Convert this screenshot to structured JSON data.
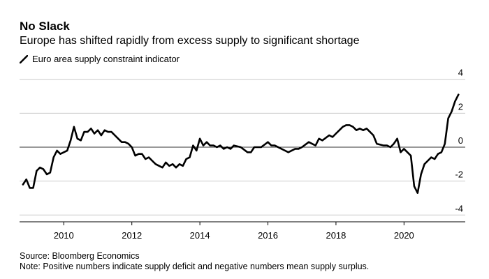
{
  "chart_data": {
    "type": "line",
    "title": "No Slack",
    "subtitle": "Europe has shifted rapidly from excess supply to significant shortage",
    "series": [
      {
        "name": "Euro area supply constraint indicator",
        "color": "#000000",
        "x": [
          2008.8,
          2008.9,
          2009.0,
          2009.1,
          2009.2,
          2009.3,
          2009.4,
          2009.5,
          2009.6,
          2009.7,
          2009.8,
          2009.9,
          2010.0,
          2010.1,
          2010.2,
          2010.3,
          2010.4,
          2010.5,
          2010.6,
          2010.7,
          2010.8,
          2010.9,
          2011.0,
          2011.1,
          2011.2,
          2011.3,
          2011.4,
          2011.5,
          2011.6,
          2011.7,
          2011.8,
          2011.9,
          2012.0,
          2012.1,
          2012.2,
          2012.3,
          2012.4,
          2012.5,
          2012.6,
          2012.7,
          2012.8,
          2012.9,
          2013.0,
          2013.1,
          2013.2,
          2013.3,
          2013.4,
          2013.5,
          2013.6,
          2013.7,
          2013.8,
          2013.9,
          2014.0,
          2014.1,
          2014.2,
          2014.3,
          2014.4,
          2014.5,
          2014.6,
          2014.7,
          2014.8,
          2014.9,
          2015.0,
          2015.2,
          2015.4,
          2015.5,
          2015.6,
          2015.8,
          2016.0,
          2016.1,
          2016.2,
          2016.4,
          2016.5,
          2016.6,
          2016.8,
          2016.9,
          2017.0,
          2017.2,
          2017.4,
          2017.5,
          2017.6,
          2017.8,
          2017.9,
          2018.0,
          2018.1,
          2018.2,
          2018.3,
          2018.4,
          2018.5,
          2018.6,
          2018.7,
          2018.8,
          2018.9,
          2019.0,
          2019.1,
          2019.2,
          2019.4,
          2019.5,
          2019.6,
          2019.7,
          2019.8,
          2019.9,
          2020.0,
          2020.1,
          2020.2,
          2020.3,
          2020.4,
          2020.5,
          2020.6,
          2020.7,
          2020.8,
          2020.9,
          2021.0,
          2021.1,
          2021.2,
          2021.3,
          2021.4,
          2021.5,
          2021.6
        ],
        "values": [
          -2.2,
          -1.9,
          -2.4,
          -2.4,
          -1.4,
          -1.2,
          -1.3,
          -1.6,
          -1.5,
          -0.6,
          -0.2,
          -0.4,
          -0.3,
          -0.2,
          0.4,
          1.2,
          0.5,
          0.4,
          0.9,
          0.9,
          1.1,
          0.8,
          1.0,
          0.7,
          1.0,
          0.9,
          0.9,
          0.7,
          0.5,
          0.3,
          0.3,
          0.2,
          0.0,
          -0.5,
          -0.4,
          -0.4,
          -0.7,
          -0.6,
          -0.8,
          -1.0,
          -1.1,
          -1.2,
          -0.9,
          -1.1,
          -1.0,
          -1.2,
          -1.0,
          -1.1,
          -0.7,
          -0.6,
          0.1,
          -0.2,
          0.5,
          0.1,
          0.3,
          0.1,
          0.1,
          0.0,
          0.1,
          -0.1,
          0.0,
          -0.1,
          0.1,
          0.0,
          -0.3,
          -0.3,
          0.0,
          0.0,
          0.3,
          0.1,
          0.1,
          -0.1,
          -0.2,
          -0.3,
          -0.1,
          -0.1,
          0.0,
          0.3,
          0.1,
          0.5,
          0.4,
          0.7,
          0.6,
          0.8,
          1.0,
          1.2,
          1.3,
          1.3,
          1.2,
          1.0,
          1.1,
          1.0,
          1.1,
          0.9,
          0.7,
          0.2,
          0.1,
          0.1,
          0.0,
          0.2,
          0.5,
          -0.3,
          -0.1,
          -0.3,
          -0.5,
          -2.3,
          -2.7,
          -1.6,
          -1.0,
          -0.8,
          -0.6,
          -0.7,
          -0.4,
          -0.3,
          0.2,
          1.7,
          2.1,
          2.7,
          3.1
        ]
      }
    ],
    "xlim": [
      2008.7,
      2021.8
    ],
    "ylim": [
      -4.4,
      4.4
    ],
    "xticks": [
      2010,
      2012,
      2014,
      2016,
      2018,
      2020
    ],
    "yticks": [
      -4,
      -2,
      0,
      2,
      4
    ],
    "grid": true,
    "legend": "top-left"
  },
  "legend_label": "Euro area supply constraint indicator",
  "footer": {
    "source": "Source: Bloomberg Economics",
    "note": "Note: Positive numbers indicate supply deficit and negative numbers mean supply surplus."
  }
}
